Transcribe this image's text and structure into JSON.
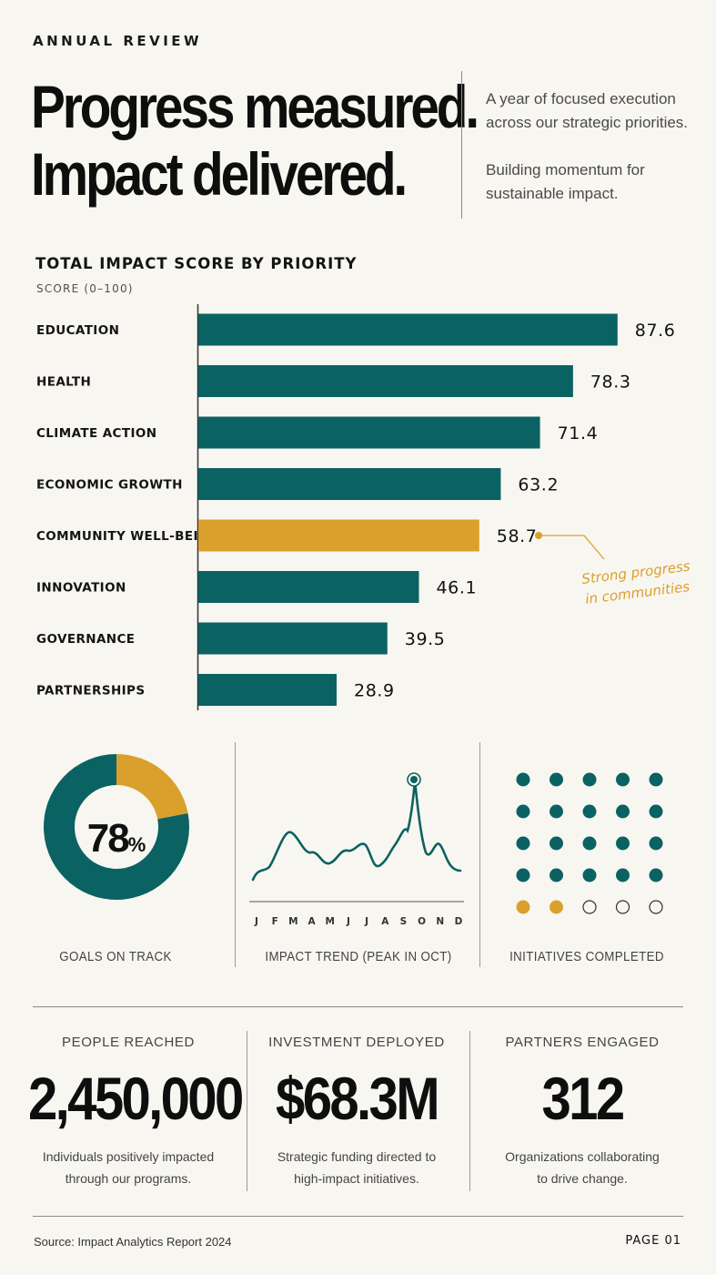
{
  "header": {
    "eyebrow": "ANNUAL REVIEW",
    "headline_line1": "Progress measured.",
    "headline_line2": "Impact delivered.",
    "intro_1": "A year of focused execution across our strategic priorities.",
    "intro_2": "Building momentum for sustainable impact."
  },
  "colors": {
    "teal": "#0b6262",
    "gold": "#dba02c",
    "background": "#f8f6f0"
  },
  "chart_data": {
    "type": "bar",
    "orientation": "horizontal",
    "title": "TOTAL IMPACT SCORE BY PRIORITY",
    "subtitle": "SCORE (0–100)",
    "categories": [
      "EDUCATION",
      "HEALTH",
      "CLIMATE ACTION",
      "ECONOMIC GROWTH",
      "COMMUNITY WELL-BEING",
      "INNOVATION",
      "GOVERNANCE",
      "PARTNERSHIPS"
    ],
    "values": [
      87.6,
      78.3,
      71.4,
      63.2,
      58.7,
      46.1,
      39.5,
      28.9
    ],
    "xlim": [
      0,
      100
    ],
    "highlight_index": 4,
    "annotation": {
      "line1": "Strong progress",
      "line2": "in communities"
    }
  },
  "panels": {
    "goals": {
      "percent": "78",
      "unit": "%",
      "on_track_fraction": 0.78,
      "label": "GOALS ON TRACK"
    },
    "trend": {
      "label": "IMPACT TREND (PEAK IN OCT)",
      "months": [
        "J",
        "F",
        "M",
        "A",
        "M",
        "J",
        "J",
        "A",
        "S",
        "O",
        "N",
        "D"
      ]
    },
    "initiatives": {
      "label": "INITIATIVES COMPLETED",
      "total": 25,
      "completed_teal": 20,
      "completed_gold": 2,
      "open": 3
    }
  },
  "stats": [
    {
      "label": "PEOPLE REACHED",
      "value": "2,450,000",
      "desc_1": "Individuals positively impacted",
      "desc_2": "through our programs."
    },
    {
      "label": "INVESTMENT DEPLOYED",
      "value": "$68.3M",
      "desc_1": "Strategic funding directed to",
      "desc_2": "high-impact initiatives."
    },
    {
      "label": "PARTNERS ENGAGED",
      "value": "312",
      "desc_1": "Organizations collaborating",
      "desc_2": "to drive change."
    }
  ],
  "footer": {
    "source": "Source: Impact Analytics Report 2024",
    "page": "PAGE 01"
  }
}
